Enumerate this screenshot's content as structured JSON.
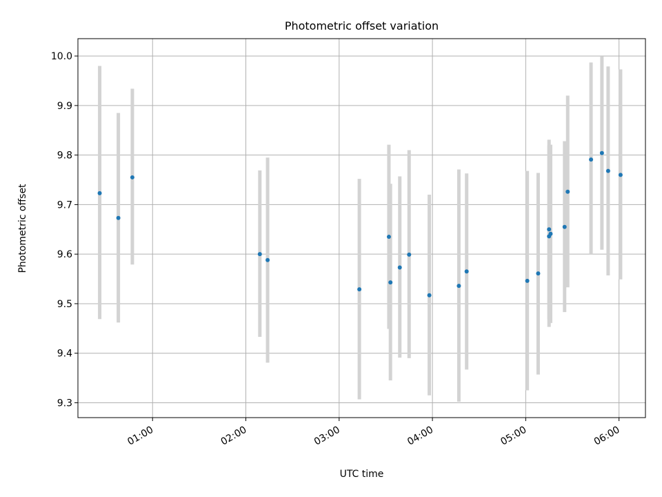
{
  "chart_data": {
    "type": "scatter",
    "title": "Photometric offset variation",
    "xlabel": "UTC time",
    "ylabel": "Photometric offset",
    "xlim": [
      "00:12",
      "06:17"
    ],
    "ylim": [
      9.27,
      10.035
    ],
    "grid": true,
    "x_ticks": [
      "01:00",
      "02:00",
      "03:00",
      "04:00",
      "05:00",
      "06:00"
    ],
    "y_ticks": [
      9.3,
      9.4,
      9.5,
      9.6,
      9.7,
      9.8,
      9.9,
      10.0
    ],
    "y_tick_labels": [
      "9.3",
      "9.4",
      "9.5",
      "9.6",
      "9.7",
      "9.8",
      "9.9",
      "10.0"
    ],
    "point_color": "#1f77b4",
    "errorbar_color": "#d3d3d3",
    "series": [
      {
        "points": [
          {
            "x": "00:26",
            "y": 9.723,
            "low": 9.469,
            "high": 9.98
          },
          {
            "x": "00:38",
            "y": 9.673,
            "low": 9.462,
            "high": 9.885
          },
          {
            "x": "00:47",
            "y": 9.755,
            "low": 9.579,
            "high": 9.934
          },
          {
            "x": "02:09",
            "y": 9.6,
            "low": 9.433,
            "high": 9.769
          },
          {
            "x": "02:14",
            "y": 9.588,
            "low": 9.381,
            "high": 9.795
          },
          {
            "x": "03:13",
            "y": 9.529,
            "low": 9.307,
            "high": 9.752
          },
          {
            "x": "03:32",
            "y": 9.635,
            "low": 9.449,
            "high": 9.821
          },
          {
            "x": "03:33",
            "y": 9.543,
            "low": 9.345,
            "high": 9.742
          },
          {
            "x": "03:39",
            "y": 9.573,
            "low": 9.391,
            "high": 9.757
          },
          {
            "x": "03:45",
            "y": 9.599,
            "low": 9.39,
            "high": 9.81
          },
          {
            "x": "03:58",
            "y": 9.517,
            "low": 9.315,
            "high": 9.72
          },
          {
            "x": "04:17",
            "y": 9.536,
            "low": 9.302,
            "high": 9.771
          },
          {
            "x": "04:22",
            "y": 9.565,
            "low": 9.367,
            "high": 9.763
          },
          {
            "x": "05:01",
            "y": 9.546,
            "low": 9.325,
            "high": 9.768
          },
          {
            "x": "05:08",
            "y": 9.561,
            "low": 9.357,
            "high": 9.764
          },
          {
            "x": "05:15",
            "y": 9.636,
            "low": 9.453,
            "high": 9.82
          },
          {
            "x": "05:15",
            "y": 9.65,
            "low": 9.468,
            "high": 9.831
          },
          {
            "x": "05:16",
            "y": 9.641,
            "low": 9.461,
            "high": 9.821
          },
          {
            "x": "05:25",
            "y": 9.655,
            "low": 9.483,
            "high": 9.828
          },
          {
            "x": "05:27",
            "y": 9.726,
            "low": 9.533,
            "high": 9.92
          },
          {
            "x": "05:42",
            "y": 9.791,
            "low": 9.6,
            "high": 9.987
          },
          {
            "x": "05:49",
            "y": 9.804,
            "low": 9.609,
            "high": 9.999
          },
          {
            "x": "05:53",
            "y": 9.768,
            "low": 9.557,
            "high": 9.979
          },
          {
            "x": "06:01",
            "y": 9.76,
            "low": 9.549,
            "high": 9.973
          }
        ]
      }
    ]
  }
}
